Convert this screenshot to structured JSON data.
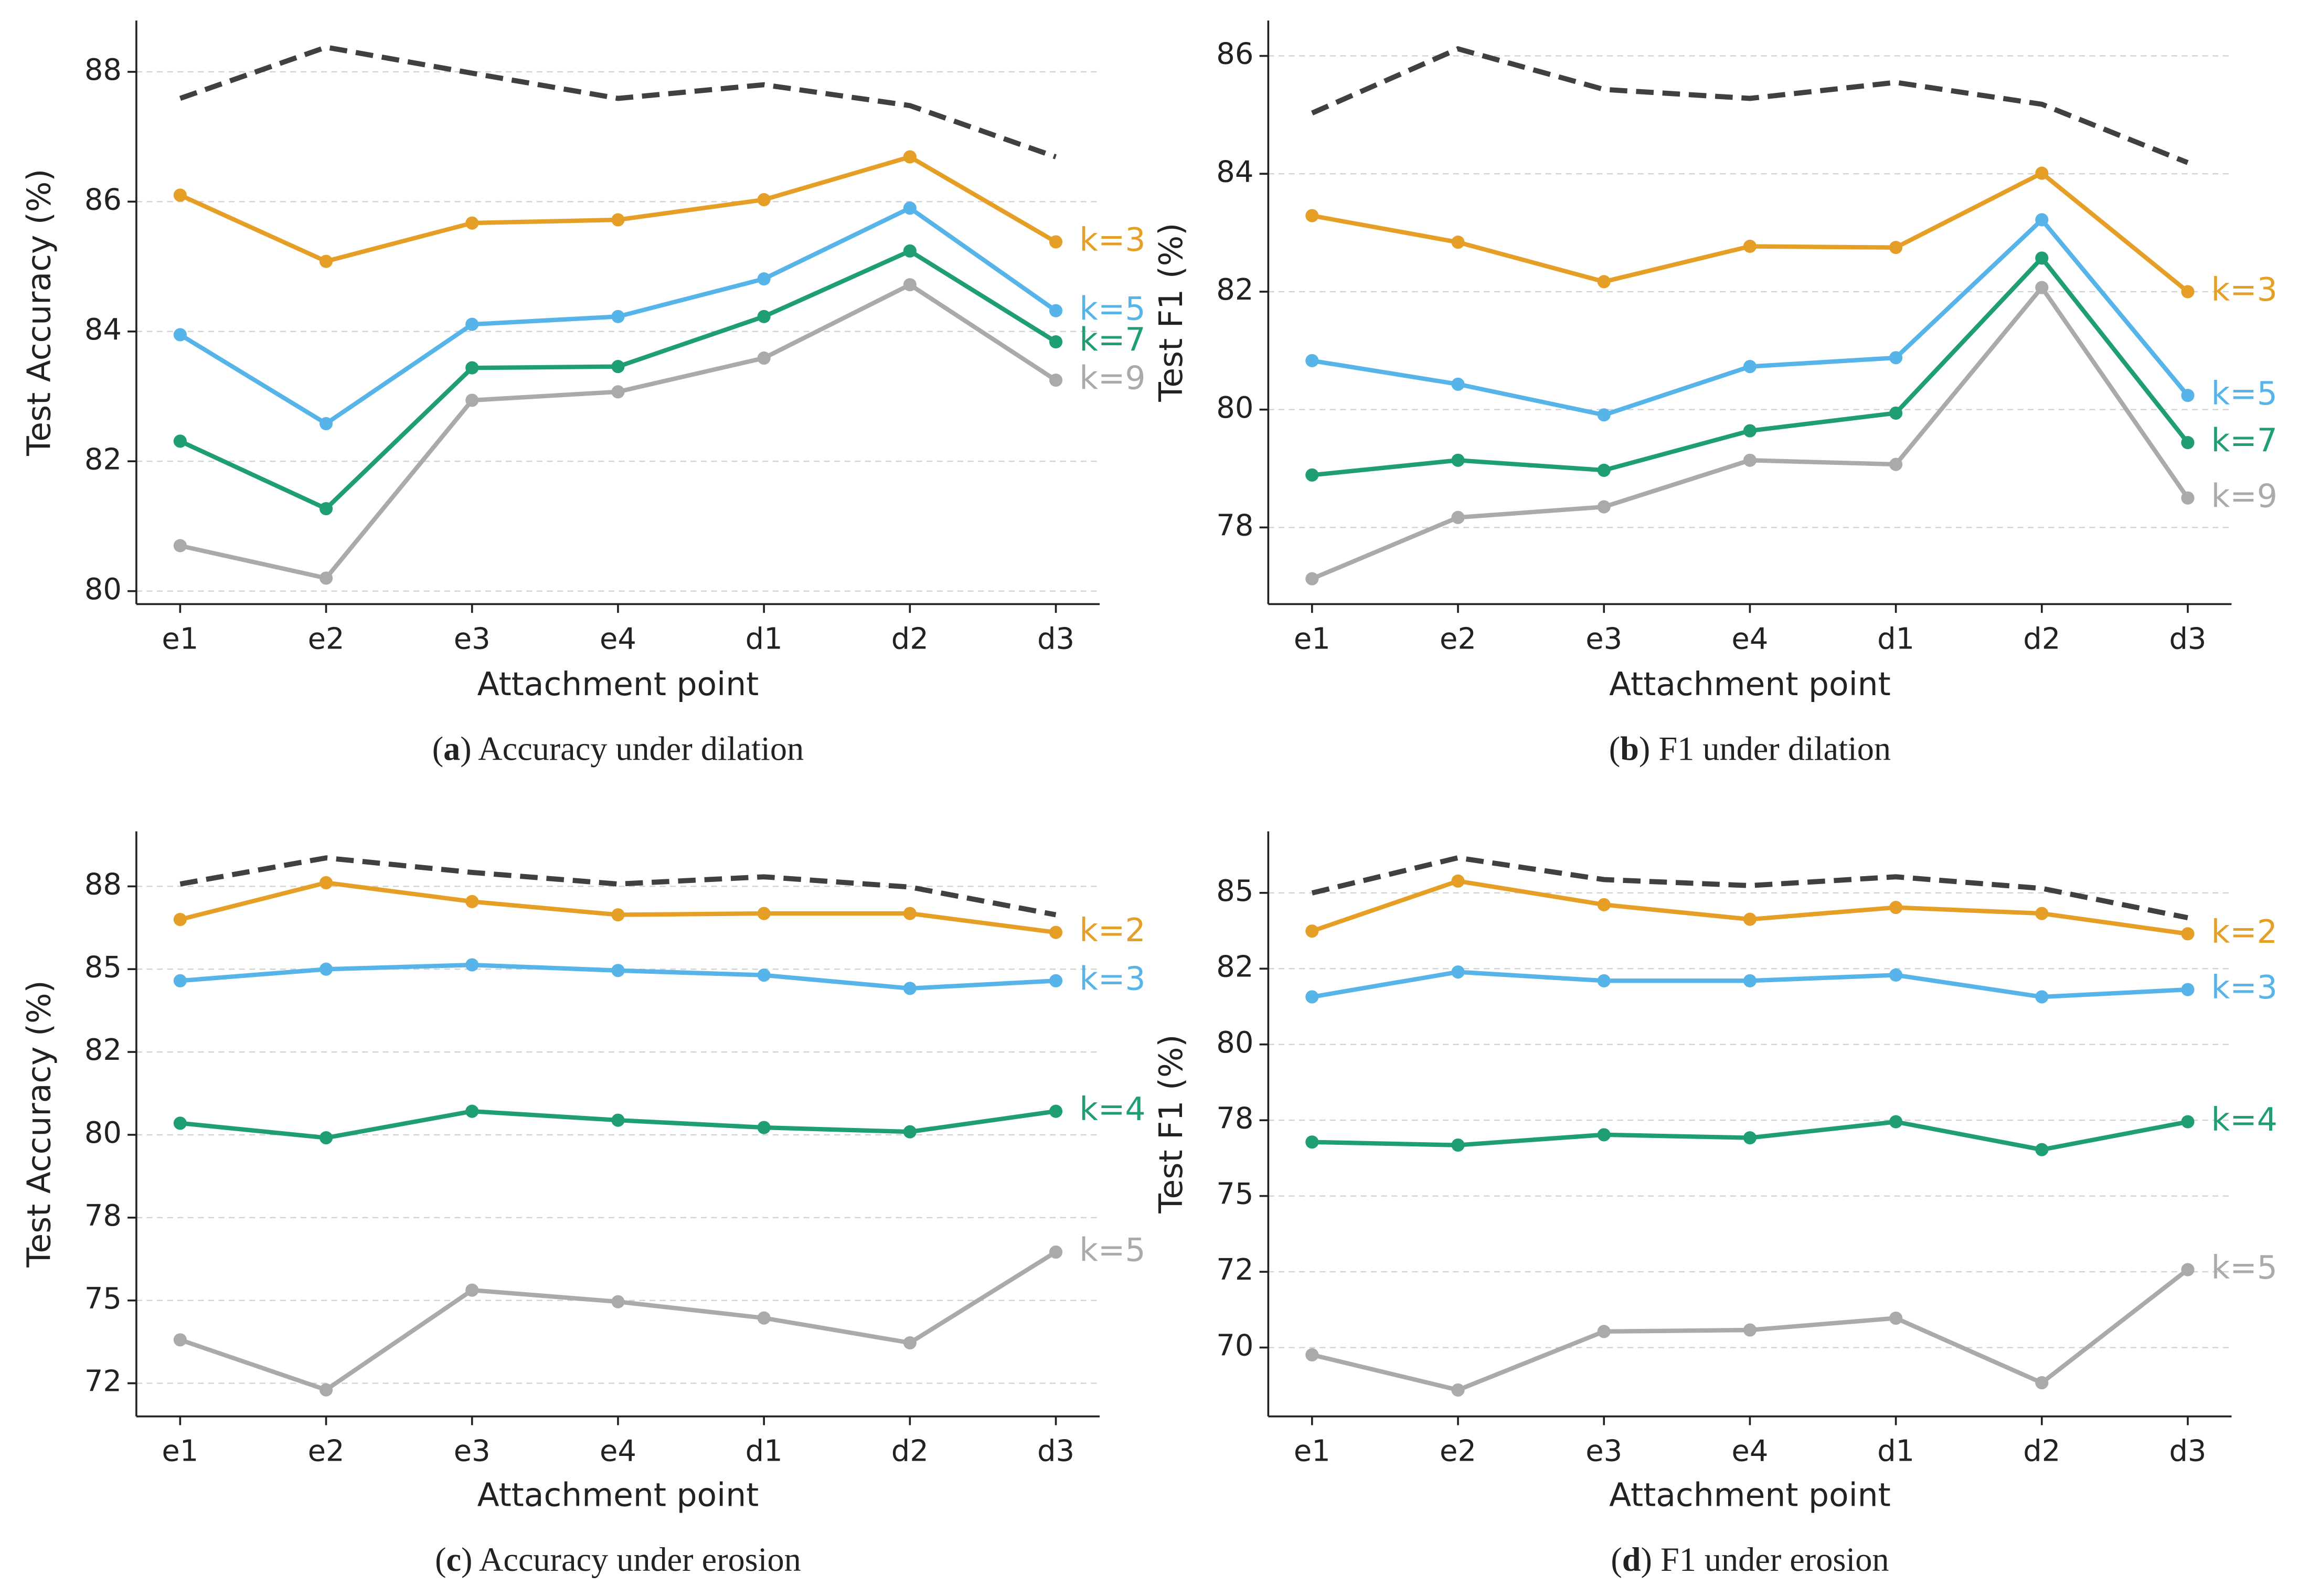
{
  "chart_data": [
    {
      "type": "line",
      "caption": [
        "(",
        "a",
        ") Accuracy under dilation"
      ],
      "xlabel": "Attachment point",
      "ylabel": "Test Accuracy (%)",
      "categories": [
        "e1",
        "e2",
        "e3",
        "e4",
        "d1",
        "d2",
        "d3"
      ],
      "ylim": [
        79.8,
        88.79
      ],
      "yticks": [
        80,
        82,
        84,
        86,
        88
      ],
      "grid": true,
      "series": [
        {
          "color": "#404040",
          "dashed": true,
          "values": [
            87.59,
            88.38,
            87.98,
            87.59,
            87.8,
            87.48,
            86.69
          ]
        },
        {
          "name": "k=3",
          "color": "#e69f26",
          "values": [
            86.1,
            85.08,
            85.67,
            85.72,
            86.03,
            86.69,
            85.38
          ]
        },
        {
          "name": "k=5",
          "color": "#56b4e9",
          "values": [
            83.95,
            82.58,
            84.11,
            84.23,
            84.81,
            85.9,
            84.32
          ]
        },
        {
          "name": "k=7",
          "color": "#1f9e74",
          "values": [
            82.31,
            81.27,
            83.44,
            83.46,
            84.23,
            85.24,
            83.84
          ]
        },
        {
          "name": "k=9",
          "color": "#aaaaaa",
          "values": [
            80.7,
            80.2,
            82.94,
            83.07,
            83.59,
            84.72,
            83.25
          ]
        }
      ]
    },
    {
      "type": "line",
      "caption": [
        "(",
        "b",
        ") F1 under dilation"
      ],
      "xlabel": "Attachment point",
      "ylabel": "Test F1 (%)",
      "categories": [
        "e1",
        "e2",
        "e3",
        "e4",
        "d1",
        "d2",
        "d3"
      ],
      "ylim": [
        76.7,
        86.6
      ],
      "yticks": [
        78,
        80,
        82,
        84,
        86
      ],
      "grid": true,
      "series": [
        {
          "color": "#404040",
          "dashed": true,
          "values": [
            85.03,
            86.12,
            85.43,
            85.28,
            85.55,
            85.18,
            84.19
          ]
        },
        {
          "name": "k=3",
          "color": "#e69f26",
          "values": [
            83.29,
            82.84,
            82.17,
            82.77,
            82.75,
            84.01,
            82.0
          ]
        },
        {
          "name": "k=5",
          "color": "#56b4e9",
          "values": [
            80.83,
            80.43,
            79.91,
            80.73,
            80.88,
            83.22,
            80.24
          ]
        },
        {
          "name": "k=7",
          "color": "#1f9e74",
          "values": [
            78.89,
            79.14,
            78.97,
            79.64,
            79.94,
            82.57,
            79.44
          ]
        },
        {
          "name": "k=9",
          "color": "#aaaaaa",
          "values": [
            77.13,
            78.17,
            78.35,
            79.14,
            79.07,
            82.07,
            78.5
          ]
        }
      ]
    },
    {
      "type": "line",
      "caption": [
        "(",
        "c",
        ") Accuracy under erosion"
      ],
      "xlabel": "Attachment point",
      "ylabel": "Test Accuracy (%)",
      "categories": [
        "e1",
        "e2",
        "e3",
        "e4",
        "d1",
        "d2",
        "d3"
      ],
      "ylim": [
        71.5,
        89.16
      ],
      "yticks": [
        {
          "value": 72.5,
          "label": "72"
        },
        75,
        {
          "value": 77.5,
          "label": "78"
        },
        80,
        {
          "value": 82.5,
          "label": "82"
        },
        85,
        {
          "value": 87.5,
          "label": "88"
        }
      ],
      "grid": true,
      "series": [
        {
          "color": "#404040",
          "dashed": true,
          "values": [
            87.57,
            88.36,
            87.92,
            87.57,
            87.79,
            87.48,
            86.64
          ]
        },
        {
          "name": "k=2",
          "color": "#e69f26",
          "values": [
            86.5,
            87.61,
            87.04,
            86.64,
            86.68,
            86.68,
            86.11
          ]
        },
        {
          "name": "k=3",
          "color": "#56b4e9",
          "values": [
            84.65,
            85.0,
            85.13,
            84.96,
            84.82,
            84.42,
            84.65
          ]
        },
        {
          "name": "k=4",
          "color": "#1f9e74",
          "values": [
            80.35,
            79.91,
            80.71,
            80.44,
            80.22,
            80.09,
            80.71
          ]
        },
        {
          "name": "k=5",
          "color": "#aaaaaa",
          "values": [
            73.81,
            72.3,
            75.31,
            74.96,
            74.47,
            73.72,
            76.46
          ]
        }
      ]
    },
    {
      "type": "line",
      "caption": [
        "(",
        "d",
        ") F1 under erosion"
      ],
      "xlabel": "Attachment point",
      "ylabel": "Test F1 (%)",
      "categories": [
        "e1",
        "e2",
        "e3",
        "e4",
        "d1",
        "d2",
        "d3"
      ],
      "ylim": [
        67.73,
        87.03
      ],
      "yticks": [
        70,
        {
          "value": 72.5,
          "label": "72"
        },
        75,
        {
          "value": 77.5,
          "label": "78"
        },
        80,
        {
          "value": 82.5,
          "label": "82"
        },
        85
      ],
      "grid": true,
      "series": [
        {
          "color": "#404040",
          "dashed": true,
          "values": [
            85.0,
            86.16,
            85.44,
            85.24,
            85.53,
            85.15,
            84.18
          ]
        },
        {
          "name": "k=2",
          "color": "#e69f26",
          "values": [
            83.74,
            85.39,
            84.61,
            84.13,
            84.52,
            84.32,
            83.65
          ]
        },
        {
          "name": "k=3",
          "color": "#56b4e9",
          "values": [
            81.57,
            82.39,
            82.1,
            82.1,
            82.29,
            81.57,
            81.81
          ]
        },
        {
          "name": "k=4",
          "color": "#1f9e74",
          "values": [
            76.78,
            76.68,
            77.02,
            76.92,
            77.45,
            76.53,
            77.45
          ]
        },
        {
          "name": "k=5",
          "color": "#aaaaaa",
          "values": [
            69.76,
            68.6,
            70.53,
            70.58,
            70.97,
            68.84,
            72.57
          ]
        }
      ]
    }
  ]
}
